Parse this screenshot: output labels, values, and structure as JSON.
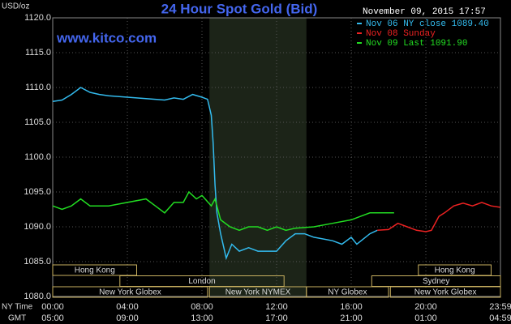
{
  "chart_data": {
    "type": "line",
    "title": "24 Hour Spot Gold (Bid)",
    "y_label": "USD/oz",
    "source": "www.kitco.com",
    "timestamp": "November 09, 2015 17:57",
    "x_row_labels": [
      "NY Time",
      "GMT"
    ],
    "xlim": [
      0,
      24
    ],
    "ylim": [
      1080,
      1120
    ],
    "yticks": [
      {
        "value": 1080,
        "label": "1080.0"
      },
      {
        "value": 1085,
        "label": "1085.0"
      },
      {
        "value": 1090,
        "label": "1090.0"
      },
      {
        "value": 1095,
        "label": "1095.0"
      },
      {
        "value": 1100,
        "label": "1100.0"
      },
      {
        "value": 1105,
        "label": "1105.0"
      },
      {
        "value": 1110,
        "label": "1110.0"
      },
      {
        "value": 1115,
        "label": "1115.0"
      },
      {
        "value": 1120,
        "label": "1120.0"
      }
    ],
    "xticks": [
      {
        "value": 0,
        "label": "00:00"
      },
      {
        "value": 4,
        "label": "04:00"
      },
      {
        "value": 8,
        "label": "08:00"
      },
      {
        "value": 12,
        "label": "12:00"
      },
      {
        "value": 16,
        "label": "16:00"
      },
      {
        "value": 20,
        "label": "20:00"
      },
      {
        "value": 24,
        "label": "23:59"
      }
    ],
    "xticks_gmt": [
      {
        "value": 0,
        "label": "05:00"
      },
      {
        "value": 4,
        "label": "09:00"
      },
      {
        "value": 8,
        "label": "13:00"
      },
      {
        "value": 12,
        "label": "17:00"
      },
      {
        "value": 16,
        "label": "21:00"
      },
      {
        "value": 20,
        "label": "01:00"
      },
      {
        "value": 24,
        "label": "04:59"
      }
    ],
    "grid": true,
    "legend": "top-right",
    "sessions": [
      {
        "label": "Hong Kong",
        "start": 0,
        "end": 4.5,
        "row": 0
      },
      {
        "label": "Hong Kong",
        "start": 19.6,
        "end": 23.5,
        "row": 0
      },
      {
        "label": "London",
        "start": 3.6,
        "end": 12.4,
        "row": 1
      },
      {
        "label": "Sydney",
        "start": 17.1,
        "end": 24,
        "row": 1
      },
      {
        "label": "New York Globex",
        "start": 0,
        "end": 8.3,
        "row": 2
      },
      {
        "label": "New York NYMEX",
        "start": 8.4,
        "end": 13.6,
        "row": 2,
        "shaded": true
      },
      {
        "label": "NY Globex",
        "start": 13.6,
        "end": 18,
        "row": 2
      },
      {
        "label": "New York Globex",
        "start": 18.1,
        "end": 24,
        "row": 2
      }
    ],
    "series": [
      {
        "name": "Nov 06 NY close 1089.40",
        "color": "#33bbee",
        "x": [
          0,
          0.5,
          1,
          1.5,
          2,
          2.5,
          3,
          4,
          5,
          6,
          6.5,
          7,
          7.5,
          8,
          8.3,
          8.5,
          8.6,
          8.7,
          8.8,
          9,
          9.3,
          9.6,
          10,
          10.5,
          11,
          12,
          12.5,
          13,
          13.5,
          14,
          15,
          15.5,
          16,
          16.3,
          17,
          17.4
        ],
        "values": [
          1108,
          1108.2,
          1109,
          1110,
          1109.3,
          1109,
          1108.8,
          1108.6,
          1108.4,
          1108.2,
          1108.5,
          1108.3,
          1109,
          1108.6,
          1108.3,
          1106,
          1102,
          1096,
          1092,
          1089,
          1085.5,
          1087.5,
          1086.5,
          1087,
          1086.5,
          1086.5,
          1088,
          1089,
          1089,
          1088.5,
          1088,
          1087.5,
          1088.5,
          1087.5,
          1089,
          1089.5
        ]
      },
      {
        "name": "Nov 08 Sunday",
        "color": "#ee2222",
        "x": [
          17.4,
          18,
          18.5,
          19,
          19.5,
          20,
          20.3,
          20.7,
          21,
          21.5,
          22,
          22.5,
          23,
          23.5,
          23.98
        ],
        "values": [
          1089.5,
          1089.6,
          1090.5,
          1090,
          1089.5,
          1089.3,
          1089.5,
          1091.5,
          1092,
          1093,
          1093.4,
          1093,
          1093.5,
          1093,
          1092.8
        ]
      },
      {
        "name": "Nov 09 Last 1091.90",
        "color": "#22dd22",
        "x": [
          0,
          0.5,
          1,
          1.5,
          2,
          3,
          4,
          5,
          5.5,
          6,
          6.5,
          7,
          7.3,
          7.7,
          8,
          8.5,
          8.7,
          9,
          9.5,
          10,
          10.5,
          11,
          11.5,
          12,
          12.5,
          13,
          14,
          15,
          16,
          16.5,
          17,
          18.3
        ],
        "values": [
          1093,
          1092.5,
          1093,
          1094,
          1093,
          1093,
          1093.5,
          1094,
          1093,
          1092,
          1093.5,
          1093.5,
          1095,
          1094,
          1094.5,
          1093,
          1094,
          1091,
          1090,
          1089.5,
          1090,
          1090,
          1089.5,
          1090,
          1089.5,
          1089.8,
          1090,
          1090.5,
          1091,
          1091.5,
          1092,
          1092
        ]
      }
    ]
  }
}
